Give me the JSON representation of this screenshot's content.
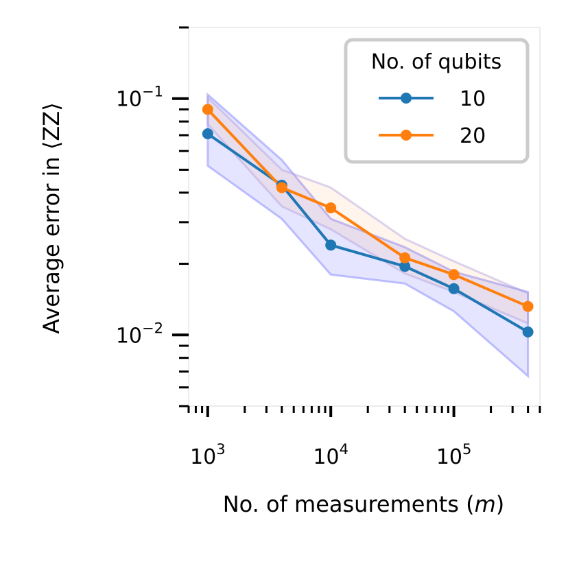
{
  "chart_data": {
    "type": "line",
    "title": "",
    "xlabel": "No. of measurements (",
    "xlabel_var": "m",
    "xlabel_close": ")",
    "ylabel": "Average error in ⟨ZZ⟩",
    "x_scale": "log",
    "y_scale": "log",
    "xlim": [
      700,
      500000
    ],
    "ylim": [
      0.005,
      0.2
    ],
    "x": [
      1000,
      4000,
      10000,
      40000,
      100000,
      400000
    ],
    "x_ticks": [
      {
        "value": 1000,
        "base": "10",
        "exp": "3"
      },
      {
        "value": 10000,
        "base": "10",
        "exp": "4"
      },
      {
        "value": 100000,
        "base": "10",
        "exp": "5"
      }
    ],
    "y_ticks": [
      {
        "value": 0.1,
        "base": "10",
        "exp": "−1"
      },
      {
        "value": 0.01,
        "base": "10",
        "exp": "−2"
      }
    ],
    "legend": {
      "title": "No. of qubits",
      "position": "top-right"
    },
    "series": [
      {
        "name": "10",
        "color": "#1f77b4",
        "values": [
          0.071,
          0.043,
          0.024,
          0.0195,
          0.0157,
          0.0103
        ],
        "band_lower": [
          0.052,
          0.031,
          0.018,
          0.0165,
          0.0126,
          0.0067
        ],
        "band_upper": [
          0.104,
          0.055,
          0.031,
          0.0235,
          0.0185,
          0.0152
        ],
        "band_color": "#0000ff"
      },
      {
        "name": "20",
        "color": "#ff7f0e",
        "values": [
          0.09,
          0.042,
          0.0345,
          0.0212,
          0.018,
          0.0132
        ],
        "band_lower": [
          0.078,
          0.035,
          0.028,
          0.0182,
          0.0152,
          0.0112
        ],
        "band_upper": [
          0.101,
          0.05,
          0.042,
          0.0255,
          0.0205,
          0.015
        ],
        "band_color": "#ff7f0e"
      }
    ]
  }
}
